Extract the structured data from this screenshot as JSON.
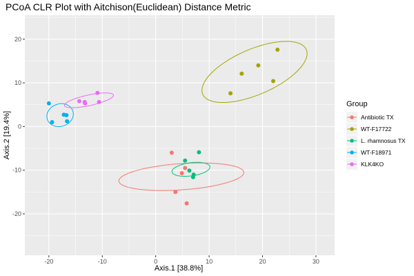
{
  "chart_data": {
    "type": "scatter",
    "title": "PCoA CLR Plot with Aitchison(Euclidean) Distance Metric",
    "xlabel": "Axis.1   [38.8%]",
    "ylabel": "Axis.2  [19.4%]",
    "xlim": [
      -24.5,
      33.5
    ],
    "ylim": [
      -29.5,
      25.5
    ],
    "xticks": [
      -20,
      -10,
      0,
      10,
      20,
      30
    ],
    "yticks": [
      -20,
      -10,
      0,
      10,
      20
    ],
    "xtick_labels": [
      "-20",
      "-10",
      "0",
      "10",
      "20",
      "30"
    ],
    "ytick_labels": [
      "-20",
      "-10",
      "0",
      "10",
      "20"
    ],
    "grid": true,
    "legend": {
      "title": "Group",
      "position": "right"
    },
    "series": [
      {
        "name": "Antibiotic TX",
        "color": "#F8766D",
        "points": [
          [
            3.0,
            -6.0
          ],
          [
            5.5,
            -9.5
          ],
          [
            4.9,
            -10.7
          ],
          [
            3.7,
            -15.0
          ],
          [
            5.8,
            -17.6
          ]
        ],
        "ellipse": {
          "cx": 4.8,
          "cy": -11.5,
          "rx": 6.0,
          "ry": 23.5,
          "angle_deg": -85
        }
      },
      {
        "name": "WT-F17722",
        "color": "#A3A500",
        "points": [
          [
            14.0,
            7.6
          ],
          [
            16.1,
            12.1
          ],
          [
            19.2,
            14.0
          ],
          [
            22.8,
            17.6
          ],
          [
            22.0,
            10.4
          ]
        ],
        "ellipse": {
          "cx": 18.5,
          "cy": 12.5,
          "rx": 22.0,
          "ry": 10.0,
          "angle_deg": 30
        }
      },
      {
        "name": "L. rhamnosus TX",
        "color": "#00BF7D",
        "points": [
          [
            5.5,
            -7.8
          ],
          [
            6.3,
            -10.1
          ],
          [
            8.1,
            -5.9
          ],
          [
            7.1,
            -11.0
          ],
          [
            7.0,
            -11.6
          ]
        ],
        "ellipse": {
          "cx": 6.6,
          "cy": -9.8,
          "rx": 3.0,
          "ry": 7.2,
          "angle_deg": -80
        }
      },
      {
        "name": "WT-F18971",
        "color": "#00B0F6",
        "points": [
          [
            -20.0,
            5.3
          ],
          [
            -19.4,
            1.0
          ],
          [
            -17.2,
            2.7
          ],
          [
            -16.7,
            2.6
          ],
          [
            -16.6,
            1.2
          ]
        ],
        "ellipse": {
          "cx": -17.9,
          "cy": 2.6,
          "rx": 4.8,
          "ry": 5.4,
          "angle_deg": -30
        }
      },
      {
        "name": "KLK4KO",
        "color": "#E76BF3",
        "points": [
          [
            -14.3,
            5.8
          ],
          [
            -13.3,
            5.6
          ],
          [
            -13.2,
            5.3
          ],
          [
            -10.9,
            7.7
          ],
          [
            -10.6,
            5.6
          ]
        ],
        "ellipse": {
          "cx": -12.5,
          "cy": 6.0,
          "rx": 9.5,
          "ry": 2.4,
          "angle_deg": 15
        }
      }
    ]
  }
}
